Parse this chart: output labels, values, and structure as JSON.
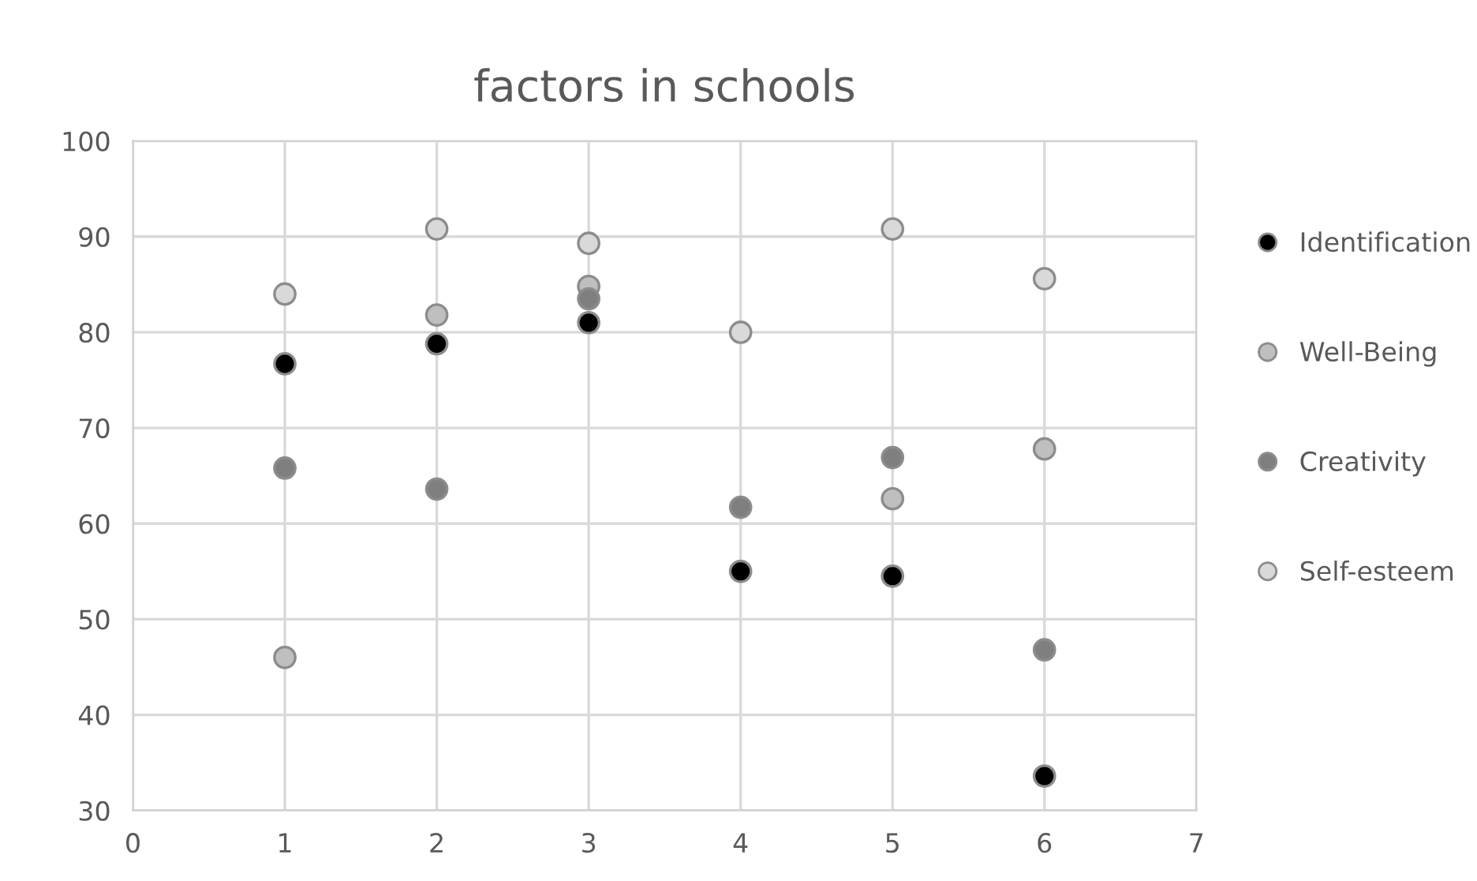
{
  "chart_data": {
    "type": "scatter",
    "title": "factors in schools",
    "x": [
      1,
      2,
      3,
      4,
      5,
      6
    ],
    "series": [
      {
        "name": "Identification",
        "color": "#000000",
        "values": [
          76.7,
          78.8,
          81.0,
          55.0,
          54.5,
          33.6
        ]
      },
      {
        "name": "Well-Being",
        "color": "#bfbfbf",
        "values": [
          46.0,
          81.8,
          84.8,
          null,
          62.6,
          67.8
        ]
      },
      {
        "name": "Creativity",
        "color": "#7f7f7f",
        "values": [
          65.8,
          63.6,
          83.5,
          61.7,
          66.9,
          46.8
        ]
      },
      {
        "name": "Self-esteem",
        "color": "#d9d9d9",
        "values": [
          84.0,
          90.8,
          89.3,
          80.0,
          90.8,
          85.6
        ]
      }
    ],
    "xlim": [
      0,
      7
    ],
    "xticks": [
      0,
      1,
      2,
      3,
      4,
      5,
      6,
      7
    ],
    "ylim": [
      30,
      100
    ],
    "yticks": [
      30,
      40,
      50,
      60,
      70,
      80,
      90,
      100
    ],
    "grid": true,
    "legend": "right",
    "marker": "circle"
  }
}
